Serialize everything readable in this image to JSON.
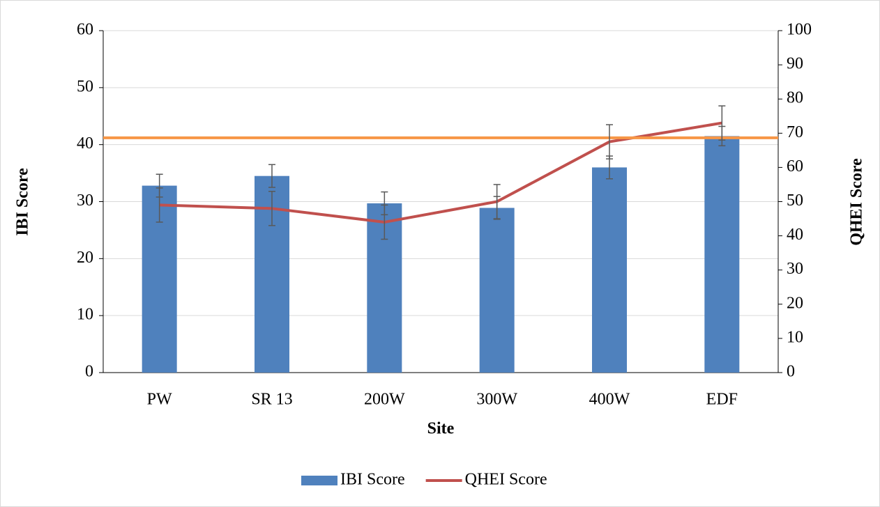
{
  "chart_data": {
    "type": "bar",
    "x_label": "Site",
    "y_label": "IBI Score",
    "y2_label": "QHEI Score",
    "categories": [
      "PW",
      "SR 13",
      "200W",
      "300W",
      "400W",
      "EDF"
    ],
    "series": [
      {
        "name": "IBI Score",
        "type": "bar",
        "color": "#4f81bd",
        "values": [
          32.8,
          34.5,
          29.7,
          28.9,
          36,
          41.5
        ],
        "errors": [
          2,
          2,
          2,
          2,
          2,
          1.7
        ]
      },
      {
        "name": "QHEI Score",
        "type": "line",
        "axis": "y2",
        "color": "#c0504d",
        "values": [
          49,
          48,
          44,
          50,
          67.5,
          73
        ],
        "errors": [
          5,
          5,
          5,
          5,
          5,
          5
        ]
      }
    ],
    "hline": {
      "value": 41.2,
      "color": "#f79646"
    },
    "ylim": [
      0,
      60
    ],
    "yticks": [
      0,
      10,
      20,
      30,
      40,
      50,
      60
    ],
    "y2lim": [
      0,
      100
    ],
    "y2ticks": [
      0,
      10,
      20,
      30,
      40,
      50,
      60,
      70,
      80,
      90,
      100
    ],
    "grid": true,
    "legend": "bottom"
  }
}
